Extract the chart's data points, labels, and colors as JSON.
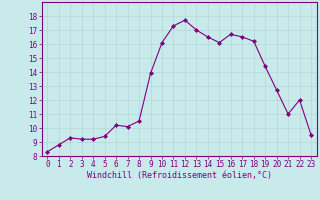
{
  "x": [
    0,
    1,
    2,
    3,
    4,
    5,
    6,
    7,
    8,
    9,
    10,
    11,
    12,
    13,
    14,
    15,
    16,
    17,
    18,
    19,
    20,
    21,
    22,
    23
  ],
  "y": [
    8.3,
    8.8,
    9.3,
    9.2,
    9.2,
    9.4,
    10.2,
    10.1,
    10.5,
    13.9,
    16.1,
    17.3,
    17.7,
    17.0,
    16.5,
    16.1,
    16.7,
    16.5,
    16.2,
    14.4,
    12.7,
    11.0,
    12.0,
    9.5
  ],
  "line_color": "#800080",
  "marker": "D",
  "marker_size": 2.0,
  "linewidth": 0.8,
  "xlabel": "Windchill (Refroidissement éolien,°C)",
  "xlabel_fontsize": 6.0,
  "ylim": [
    8,
    19
  ],
  "xlim": [
    -0.5,
    23.5
  ],
  "yticks": [
    8,
    9,
    10,
    11,
    12,
    13,
    14,
    15,
    16,
    17,
    18
  ],
  "xticks": [
    0,
    1,
    2,
    3,
    4,
    5,
    6,
    7,
    8,
    9,
    10,
    11,
    12,
    13,
    14,
    15,
    16,
    17,
    18,
    19,
    20,
    21,
    22,
    23
  ],
  "grid_color": "#b0d8d8",
  "background_color": "#c8eaea",
  "tick_fontsize": 5.5,
  "tick_color": "#800080",
  "spine_color": "#800080",
  "label_color": "#800080"
}
